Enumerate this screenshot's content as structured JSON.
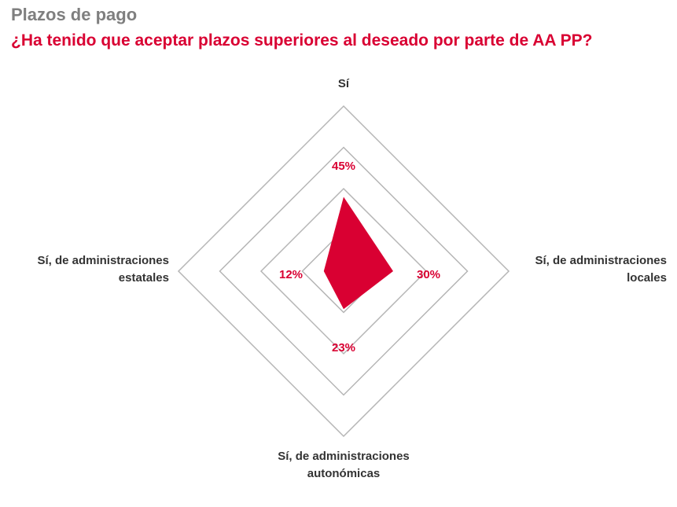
{
  "header": {
    "kicker": "Plazos de pago",
    "title": "¿Ha tenido que aceptar plazos superiores al deseado por parte de AA PP?"
  },
  "colors": {
    "accent": "#d90032",
    "kicker": "#7f7f7f",
    "grid": "#b5b5b5",
    "text": "#333333"
  },
  "chart_data": {
    "type": "radar",
    "title": "¿Ha tenido que aceptar plazos superiores al deseado por parte de AA PP?",
    "categories": [
      [
        "Sí"
      ],
      [
        "Sí, de administraciones",
        "locales"
      ],
      [
        "Sí, de administraciones",
        "autonómicas"
      ],
      [
        "Sí, de administraciones",
        "estatales"
      ]
    ],
    "values": [
      45,
      30,
      23,
      12
    ],
    "value_labels": [
      "45%",
      "30%",
      "23%",
      "12%"
    ],
    "unit": "%",
    "rmax": 100,
    "rings": [
      25,
      50,
      75,
      100
    ],
    "grid": true,
    "legend": "none"
  }
}
